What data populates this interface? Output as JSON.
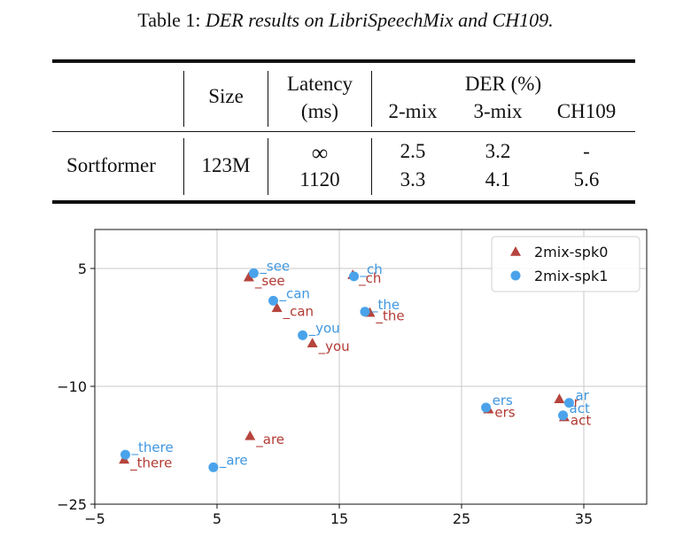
{
  "table": {
    "caption_prefix": "Table 1: ",
    "caption_title": "DER results on LibriSpeechMix and CH109.",
    "headers": {
      "size": "Size",
      "latency_line1": "Latency",
      "latency_line2": "(ms)",
      "der_group": "DER (%)",
      "sub": [
        "2-mix",
        "3-mix",
        "CH109"
      ]
    },
    "model": "Sortformer",
    "model_size": "123M",
    "rows": [
      {
        "latency": "∞",
        "mix2": "2.5",
        "mix3": "3.2",
        "ch109": "-"
      },
      {
        "latency": "1120",
        "mix2": "3.3",
        "mix3": "4.1",
        "ch109": "5.6"
      }
    ]
  },
  "chart_data": {
    "type": "scatter",
    "xlim": [
      -5,
      40
    ],
    "ylim": [
      -25,
      8
    ],
    "xticks": [
      "−5",
      "5",
      "15",
      "25",
      "35"
    ],
    "yticks": [
      "5",
      "−10",
      "−25"
    ],
    "grid": true,
    "legend_position": "top-right",
    "colors": {
      "spk0": "#b5443d",
      "spk1": "#4aa3ea",
      "spk0_text": "#b23a33",
      "spk1_text": "#3f97e0"
    },
    "series": [
      {
        "name": "2mix-spk0",
        "marker": "triangle",
        "points": [
          {
            "x": 7.6,
            "y": 3.9,
            "label": "_see"
          },
          {
            "x": 9.9,
            "y": 0.0,
            "label": "_can"
          },
          {
            "x": 17.5,
            "y": -0.6,
            "label": "_the"
          },
          {
            "x": 12.8,
            "y": -4.5,
            "label": "_you"
          },
          {
            "x": 16.1,
            "y": 4.2,
            "label": "_ch"
          },
          {
            "x": 7.7,
            "y": -16.3,
            "label": "_are"
          },
          {
            "x": -2.6,
            "y": -19.3,
            "label": "_there"
          },
          {
            "x": 27.2,
            "y": -12.9,
            "label": "ers"
          },
          {
            "x": 33.0,
            "y": -11.6,
            "label": "ar"
          },
          {
            "x": 33.4,
            "y": -13.9,
            "label": "act"
          }
        ]
      },
      {
        "name": "2mix-spk1",
        "marker": "circle",
        "points": [
          {
            "x": 8.0,
            "y": 4.4,
            "label": "_see"
          },
          {
            "x": 9.6,
            "y": 0.9,
            "label": "_can"
          },
          {
            "x": 17.1,
            "y": -0.5,
            "label": "_the"
          },
          {
            "x": 12.0,
            "y": -3.5,
            "label": "_you"
          },
          {
            "x": 16.2,
            "y": 4.0,
            "label": "_ch"
          },
          {
            "x": 4.7,
            "y": -20.3,
            "label": "_are"
          },
          {
            "x": -2.5,
            "y": -18.7,
            "label": "_there"
          },
          {
            "x": 27.0,
            "y": -12.7,
            "label": "ers"
          },
          {
            "x": 33.8,
            "y": -12.1,
            "label": "ar"
          },
          {
            "x": 33.3,
            "y": -13.7,
            "label": "act"
          }
        ]
      }
    ]
  }
}
